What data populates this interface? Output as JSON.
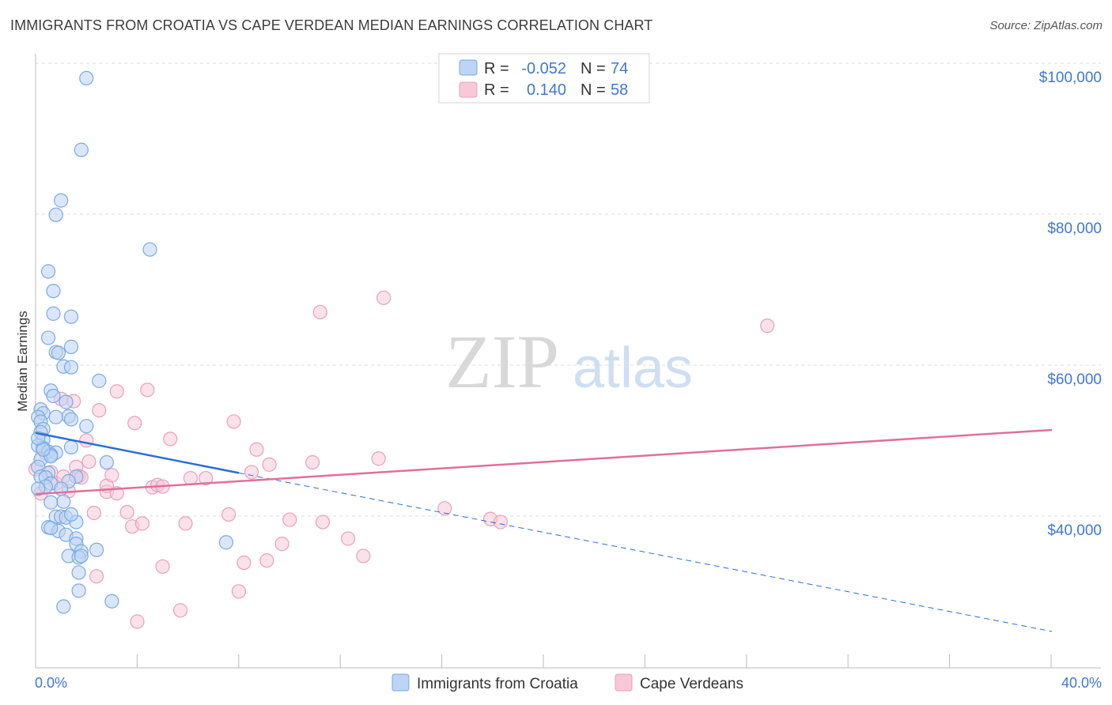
{
  "header": {
    "title": "IMMIGRANTS FROM CROATIA VS CAPE VERDEAN MEDIAN EARNINGS CORRELATION CHART",
    "source": "Source: ZipAtlas.com"
  },
  "watermark": {
    "zip": "ZIP",
    "atlas": "atlas"
  },
  "colors": {
    "blue_fill": "#bcd4f5",
    "blue_stroke": "#7aaae3",
    "blue_line": "#2a6fd3",
    "pink_fill": "#f8c8d8",
    "pink_stroke": "#eaa0b8",
    "pink_line": "#e0709a",
    "axis_label": "#3f78d0",
    "grid": "#dcdcdc"
  },
  "legend": {
    "r_label": "R =",
    "n_label": "N =",
    "rows": [
      {
        "r": "-0.052",
        "n": "74",
        "color": "blue"
      },
      {
        "r": "0.140",
        "n": "58",
        "color": "pink"
      }
    ]
  },
  "bottom_legend": [
    {
      "label": "Immigrants from Croatia",
      "color": "blue"
    },
    {
      "label": "Cape Verdeans",
      "color": "pink"
    }
  ],
  "chart_data": {
    "type": "scatter",
    "title": "IMMIGRANTS FROM CROATIA VS CAPE VERDEAN MEDIAN EARNINGS CORRELATION CHART",
    "xlabel": "",
    "ylabel": "Median Earnings",
    "xlim": [
      0,
      40
    ],
    "ylim": [
      22000,
      104000
    ],
    "x_tick_labels": [
      {
        "value": 0,
        "label": "0.0%"
      },
      {
        "value": 40,
        "label": "40.0%"
      }
    ],
    "y_tick_labels": [
      {
        "value": 40000,
        "label": "$40,000"
      },
      {
        "value": 60000,
        "label": "$60,000"
      },
      {
        "value": 80000,
        "label": "$80,000"
      },
      {
        "value": 100000,
        "label": "$100,000"
      }
    ],
    "gridlines": [
      40000,
      60000,
      80000,
      100000
    ],
    "series": [
      {
        "name": "Immigrants from Croatia",
        "color": "blue",
        "r": -0.052,
        "n": 74,
        "trend": {
          "x0": 0,
          "y0": 52800,
          "x1": 8,
          "y1": 47500,
          "dashed_x1": 40,
          "dashed_y1": 26500
        },
        "points": [
          [
            2.0,
            99800
          ],
          [
            1.8,
            90300
          ],
          [
            1.0,
            83600
          ],
          [
            0.8,
            81700
          ],
          [
            4.5,
            77100
          ],
          [
            0.5,
            74200
          ],
          [
            0.7,
            71600
          ],
          [
            0.7,
            68600
          ],
          [
            1.4,
            68200
          ],
          [
            0.5,
            65400
          ],
          [
            1.4,
            64200
          ],
          [
            0.8,
            63500
          ],
          [
            0.9,
            63400
          ],
          [
            1.1,
            61600
          ],
          [
            1.4,
            61500
          ],
          [
            2.5,
            59700
          ],
          [
            0.6,
            58400
          ],
          [
            0.7,
            57700
          ],
          [
            1.2,
            56900
          ],
          [
            0.2,
            55900
          ],
          [
            0.3,
            55400
          ],
          [
            0.1,
            54900
          ],
          [
            1.3,
            55000
          ],
          [
            0.8,
            54900
          ],
          [
            1.4,
            54600
          ],
          [
            0.2,
            54300
          ],
          [
            2.0,
            53700
          ],
          [
            0.3,
            53300
          ],
          [
            0.2,
            52900
          ],
          [
            0.3,
            51900
          ],
          [
            0.1,
            51100
          ],
          [
            0.3,
            50800
          ],
          [
            1.4,
            50900
          ],
          [
            0.5,
            50300
          ],
          [
            0.8,
            50200
          ],
          [
            0.6,
            49900
          ],
          [
            0.2,
            49300
          ],
          [
            0.6,
            49700
          ],
          [
            2.8,
            48900
          ],
          [
            0.1,
            48300
          ],
          [
            0.5,
            47500
          ],
          [
            0.2,
            47000
          ],
          [
            0.4,
            46900
          ],
          [
            1.6,
            47000
          ],
          [
            1.3,
            46400
          ],
          [
            0.6,
            46100
          ],
          [
            0.4,
            45700
          ],
          [
            0.1,
            45400
          ],
          [
            1.0,
            45400
          ],
          [
            1.1,
            43700
          ],
          [
            0.6,
            43600
          ],
          [
            0.8,
            41700
          ],
          [
            1.0,
            41700
          ],
          [
            1.2,
            41600
          ],
          [
            1.6,
            41000
          ],
          [
            0.5,
            40300
          ],
          [
            0.9,
            39800
          ],
          [
            1.2,
            39300
          ],
          [
            1.6,
            38800
          ],
          [
            1.6,
            38100
          ],
          [
            7.5,
            38300
          ],
          [
            1.8,
            37100
          ],
          [
            2.4,
            37300
          ],
          [
            1.3,
            36500
          ],
          [
            1.7,
            36300
          ],
          [
            1.8,
            36500
          ],
          [
            1.7,
            34300
          ],
          [
            1.7,
            31900
          ],
          [
            3.0,
            30500
          ],
          [
            1.1,
            29800
          ],
          [
            0.6,
            40200
          ],
          [
            1.4,
            42000
          ],
          [
            0.3,
            50600
          ],
          [
            0.1,
            52100
          ]
        ]
      },
      {
        "name": "Cape Verdeans",
        "color": "pink",
        "r": 0.14,
        "n": 58,
        "trend": {
          "x0": 0,
          "y0": 44700,
          "x1": 40,
          "y1": 53200
        },
        "points": [
          [
            0.2,
            44800
          ],
          [
            0.0,
            48000
          ],
          [
            0.4,
            50100
          ],
          [
            0.6,
            47600
          ],
          [
            0.8,
            46100
          ],
          [
            1.0,
            57300
          ],
          [
            1.1,
            47000
          ],
          [
            1.3,
            45100
          ],
          [
            1.6,
            48300
          ],
          [
            1.7,
            47100
          ],
          [
            1.8,
            46900
          ],
          [
            2.0,
            51800
          ],
          [
            2.1,
            49000
          ],
          [
            2.3,
            42200
          ],
          [
            2.4,
            33800
          ],
          [
            2.5,
            55800
          ],
          [
            2.8,
            45000
          ],
          [
            2.8,
            45800
          ],
          [
            3.0,
            47200
          ],
          [
            3.2,
            44800
          ],
          [
            3.2,
            58300
          ],
          [
            3.6,
            42300
          ],
          [
            3.8,
            40400
          ],
          [
            3.9,
            54100
          ],
          [
            4.0,
            27800
          ],
          [
            4.2,
            40800
          ],
          [
            4.4,
            58500
          ],
          [
            4.6,
            45600
          ],
          [
            4.8,
            45900
          ],
          [
            5.0,
            45700
          ],
          [
            5.0,
            35100
          ],
          [
            5.3,
            52000
          ],
          [
            5.7,
            29300
          ],
          [
            5.9,
            40800
          ],
          [
            6.1,
            46800
          ],
          [
            6.7,
            46800
          ],
          [
            7.6,
            42000
          ],
          [
            7.8,
            54300
          ],
          [
            8.0,
            31800
          ],
          [
            8.2,
            35600
          ],
          [
            8.5,
            47600
          ],
          [
            8.7,
            50600
          ],
          [
            9.2,
            48600
          ],
          [
            9.1,
            35900
          ],
          [
            9.7,
            38100
          ],
          [
            10.0,
            41300
          ],
          [
            10.9,
            48900
          ],
          [
            11.2,
            68800
          ],
          [
            11.3,
            41000
          ],
          [
            12.3,
            38800
          ],
          [
            12.9,
            36500
          ],
          [
            13.5,
            49400
          ],
          [
            13.7,
            70700
          ],
          [
            16.1,
            42800
          ],
          [
            17.9,
            41400
          ],
          [
            18.3,
            41000
          ],
          [
            28.8,
            67000
          ],
          [
            1.5,
            57000
          ]
        ]
      }
    ]
  }
}
